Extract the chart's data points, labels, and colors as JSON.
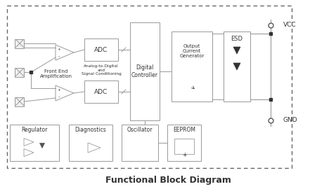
{
  "title": "Functional Block Diagram",
  "title_fontsize": 9,
  "title_fontweight": "bold",
  "bg_color": "#ffffff",
  "line_color": "#999999",
  "text_color": "#333333",
  "vcc_label": "VCC",
  "gnd_label": "GND",
  "labels": {
    "front_end": "Front End\nAmplification",
    "analog_digital": "Analog-to-Digital\nand\nSignal Conditioning",
    "adc_top": "ADC",
    "adc_bot": "ADC",
    "digital_ctrl": "Digital\nController",
    "output_current": "Output\nCurrent\nGenerator",
    "esd": "ESD",
    "regulator": "Regulator",
    "diagnostics": "Diagnostics",
    "oscillator": "Oscillator",
    "eeprom": "EEPROM"
  }
}
